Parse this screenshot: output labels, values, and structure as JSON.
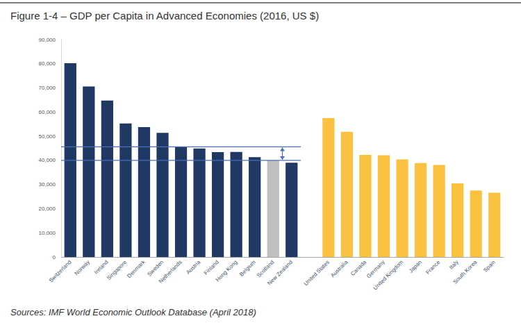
{
  "chart_data": {
    "type": "bar",
    "title": "Figure 1-4 – GDP per Capita in Advanced Economies (2016, US $)",
    "source": "Sources: IMF World Economic Outlook Database (April 2018)",
    "categories": [
      "Switzerland",
      "Norway",
      "Ireland",
      "Singapore",
      "Denmark",
      "Sweden",
      "Netherlands",
      "Austria",
      "Finland",
      "Hong Kong",
      "Belgium",
      "Scotland",
      "New Zealand",
      null,
      "United States",
      "Australia",
      "Canada",
      "Germany",
      "United Kingdom",
      "Japan",
      "France",
      "Italy",
      "South Korea",
      "Spain"
    ],
    "values": [
      80200,
      70600,
      64800,
      55300,
      53800,
      51400,
      45600,
      44900,
      43400,
      43500,
      41300,
      40000,
      39000,
      null,
      57500,
      51800,
      42300,
      42100,
      40400,
      38900,
      38100,
      30500,
      27500,
      26600
    ],
    "colors": [
      "#1f3864",
      "#1f3864",
      "#1f3864",
      "#1f3864",
      "#1f3864",
      "#1f3864",
      "#1f3864",
      "#1f3864",
      "#1f3864",
      "#1f3864",
      "#1f3864",
      "#bfbfbf",
      "#1f3864",
      null,
      "#fbc241",
      "#fbc241",
      "#fbc241",
      "#fbc241",
      "#fbc241",
      "#fbc241",
      "#fbc241",
      "#fbc241",
      "#fbc241",
      "#fbc241"
    ],
    "ylim": [
      0,
      90000
    ],
    "yticks": [
      0,
      {
        "value": 10000,
        "label": "10,000"
      },
      {
        "value": 20000,
        "label": "20,000"
      },
      {
        "value": 30000,
        "label": "30,000"
      },
      {
        "value": 40000,
        "label": "40,000"
      },
      {
        "value": 50000,
        "label": "50,000"
      },
      {
        "value": 60000,
        "label": "60,000"
      },
      {
        "value": 70000,
        "label": "70,000"
      },
      {
        "value": 80000,
        "label": "80,000"
      },
      {
        "value": 90000,
        "label": "90,000"
      }
    ],
    "reference_lines": {
      "values": [
        45600,
        40000
      ],
      "from": "Switzerland",
      "to": "New Zealand",
      "arrow_at": "Scotland",
      "color": "#4a6fb5"
    },
    "grid": false
  }
}
